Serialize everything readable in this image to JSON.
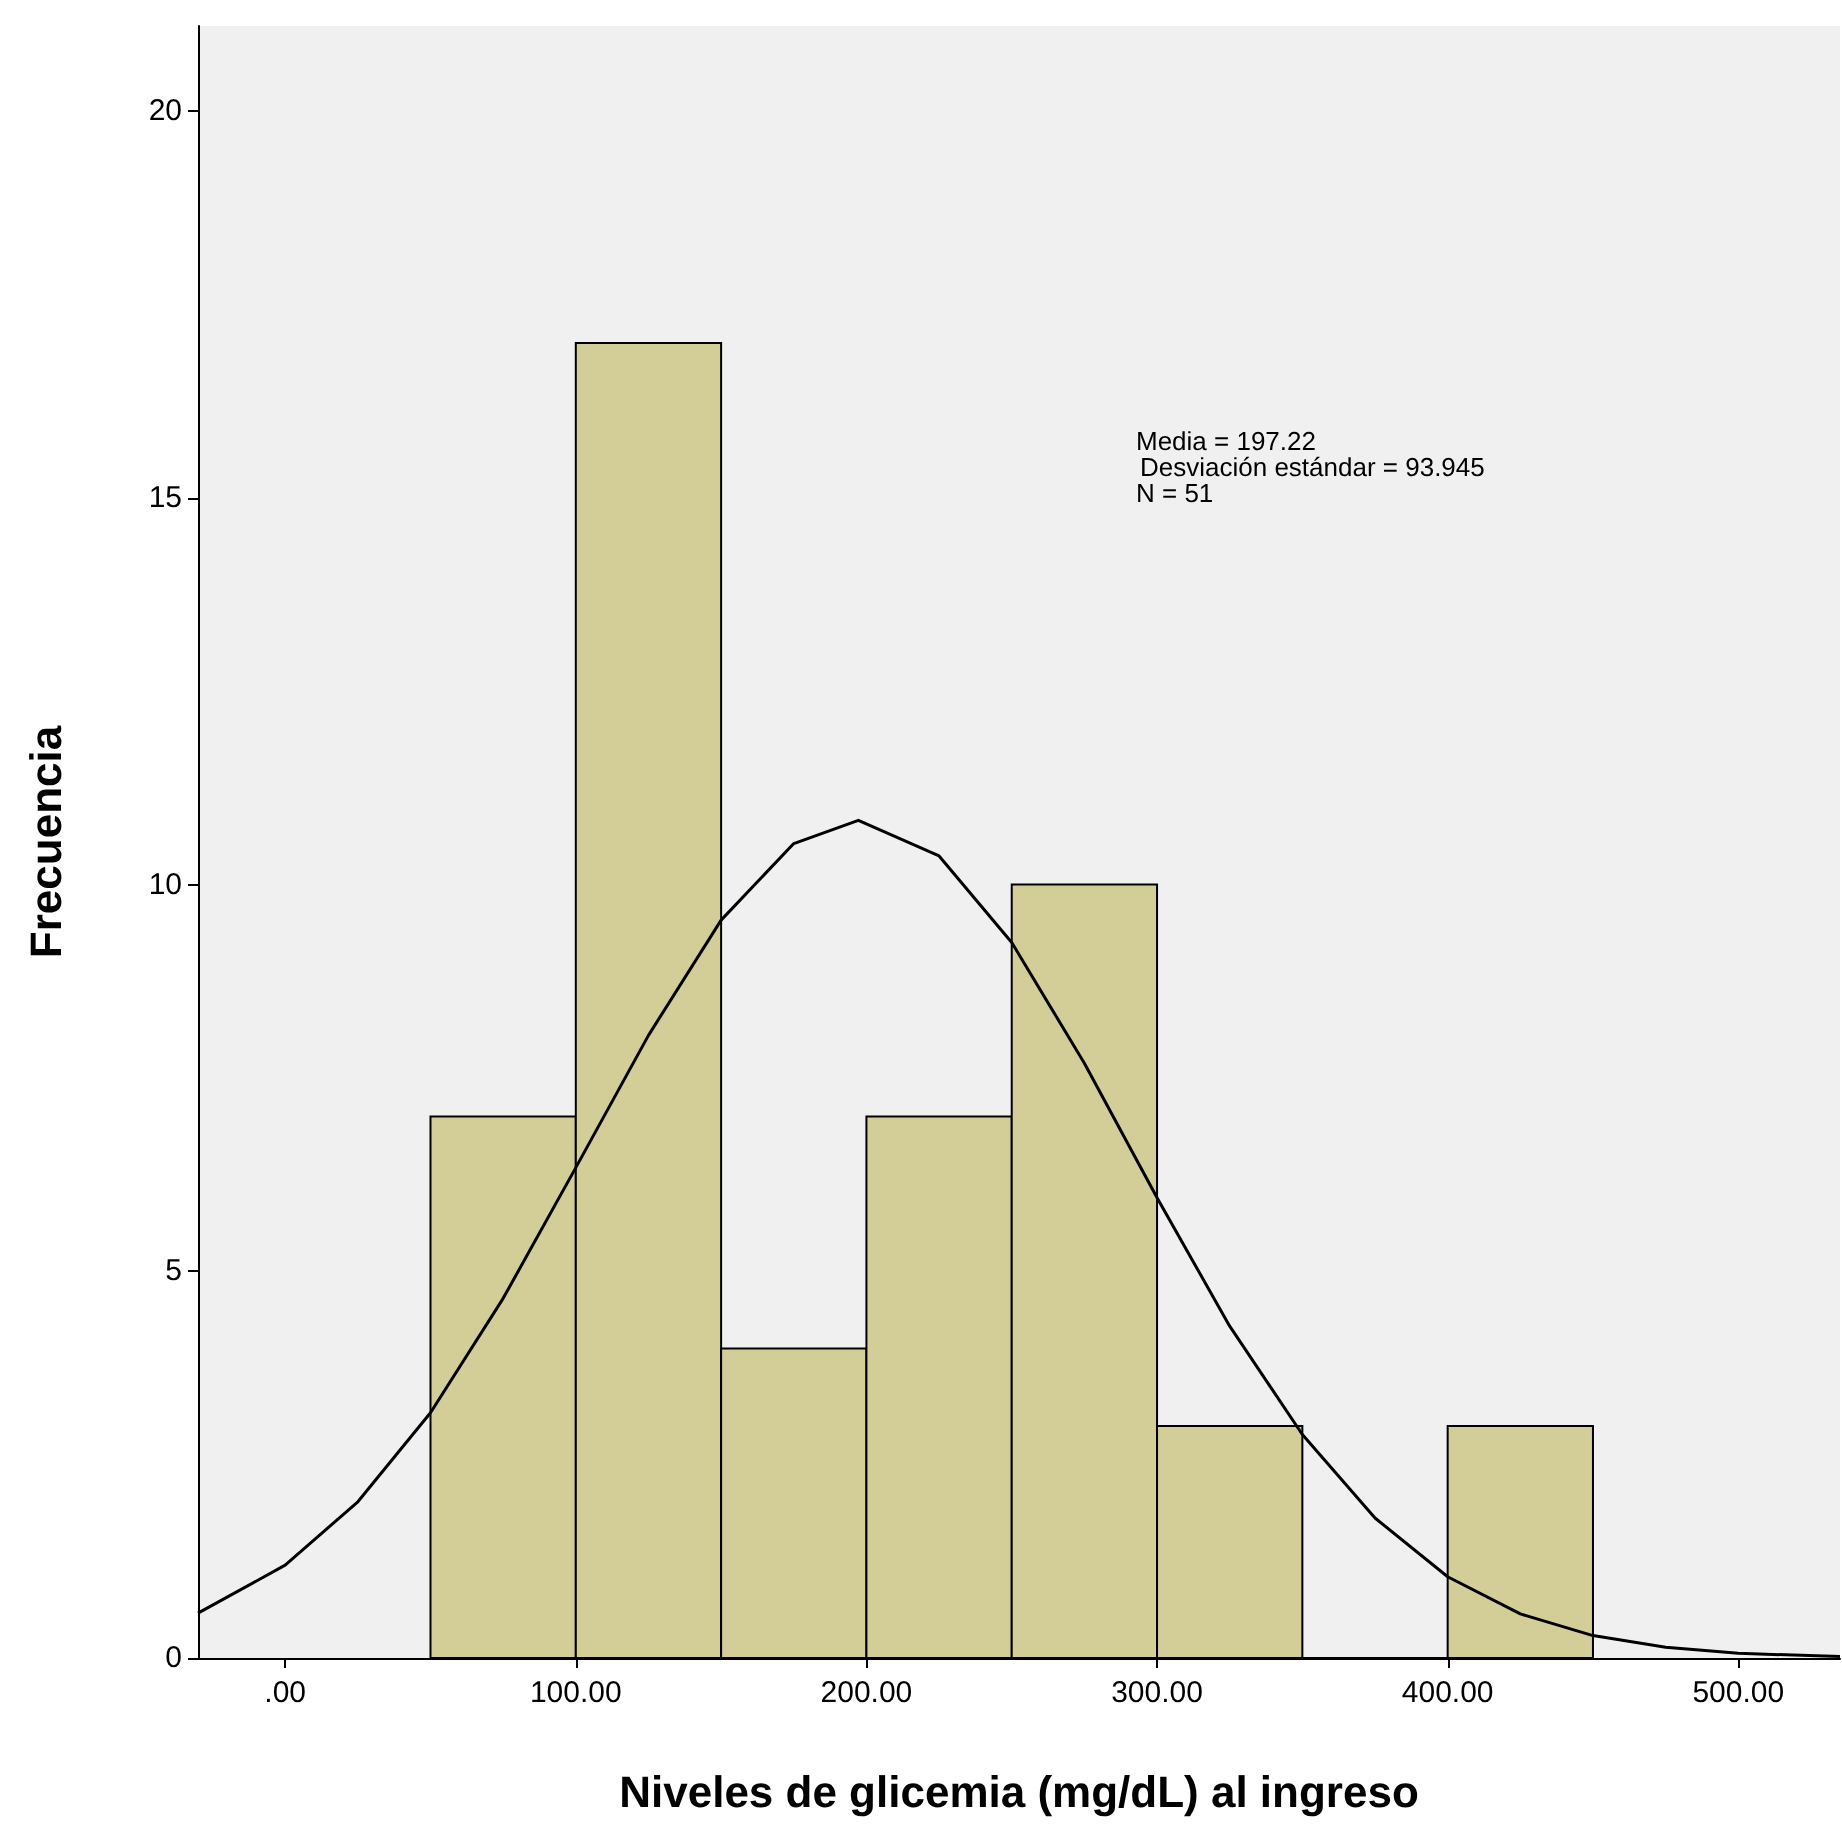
{
  "chart_data": {
    "type": "histogram",
    "xlabel": "Niveles de glicemia (mg/dL) al ingreso",
    "ylabel": "Frecuencia",
    "annotations": [
      "Media = 197.22",
      "Desviación estándar = 93.945",
      "N = 51"
    ],
    "series": [
      {
        "color": "#d3ce97",
        "bins": [
          50,
          100,
          150,
          200,
          250,
          300,
          350,
          400,
          450
        ],
        "values": [
          7,
          17,
          4,
          7,
          10,
          3,
          0,
          3
        ]
      },
      {
        "type": "line",
        "color": "#000000",
        "marker": "none",
        "x": [
          -30,
          0,
          25,
          50,
          75,
          100,
          125,
          150,
          175,
          197.22,
          225,
          250,
          275,
          300,
          325,
          350,
          375,
          400,
          425,
          450,
          475,
          500,
          535
        ],
        "values": [
          0.58,
          1.2,
          2.02,
          3.17,
          4.65,
          6.34,
          8.05,
          9.54,
          10.53,
          10.83,
          10.37,
          9.25,
          7.69,
          5.95,
          4.29,
          2.89,
          1.81,
          1.05,
          0.57,
          0.29,
          0.14,
          0.06,
          0.02
        ]
      }
    ],
    "xlim": [
      -30,
      535
    ],
    "ylim": [
      0,
      21.1
    ],
    "xticks": [
      {
        "value": 0,
        "label": ".00"
      },
      {
        "value": 100,
        "label": "100.00"
      },
      {
        "value": 200,
        "label": "200.00"
      },
      {
        "value": 300,
        "label": "300.00"
      },
      {
        "value": 400,
        "label": "400.00"
      },
      {
        "value": 500,
        "label": "500.00"
      }
    ],
    "yticks": [
      0,
      5,
      10,
      15,
      20
    ],
    "grid": false
  }
}
